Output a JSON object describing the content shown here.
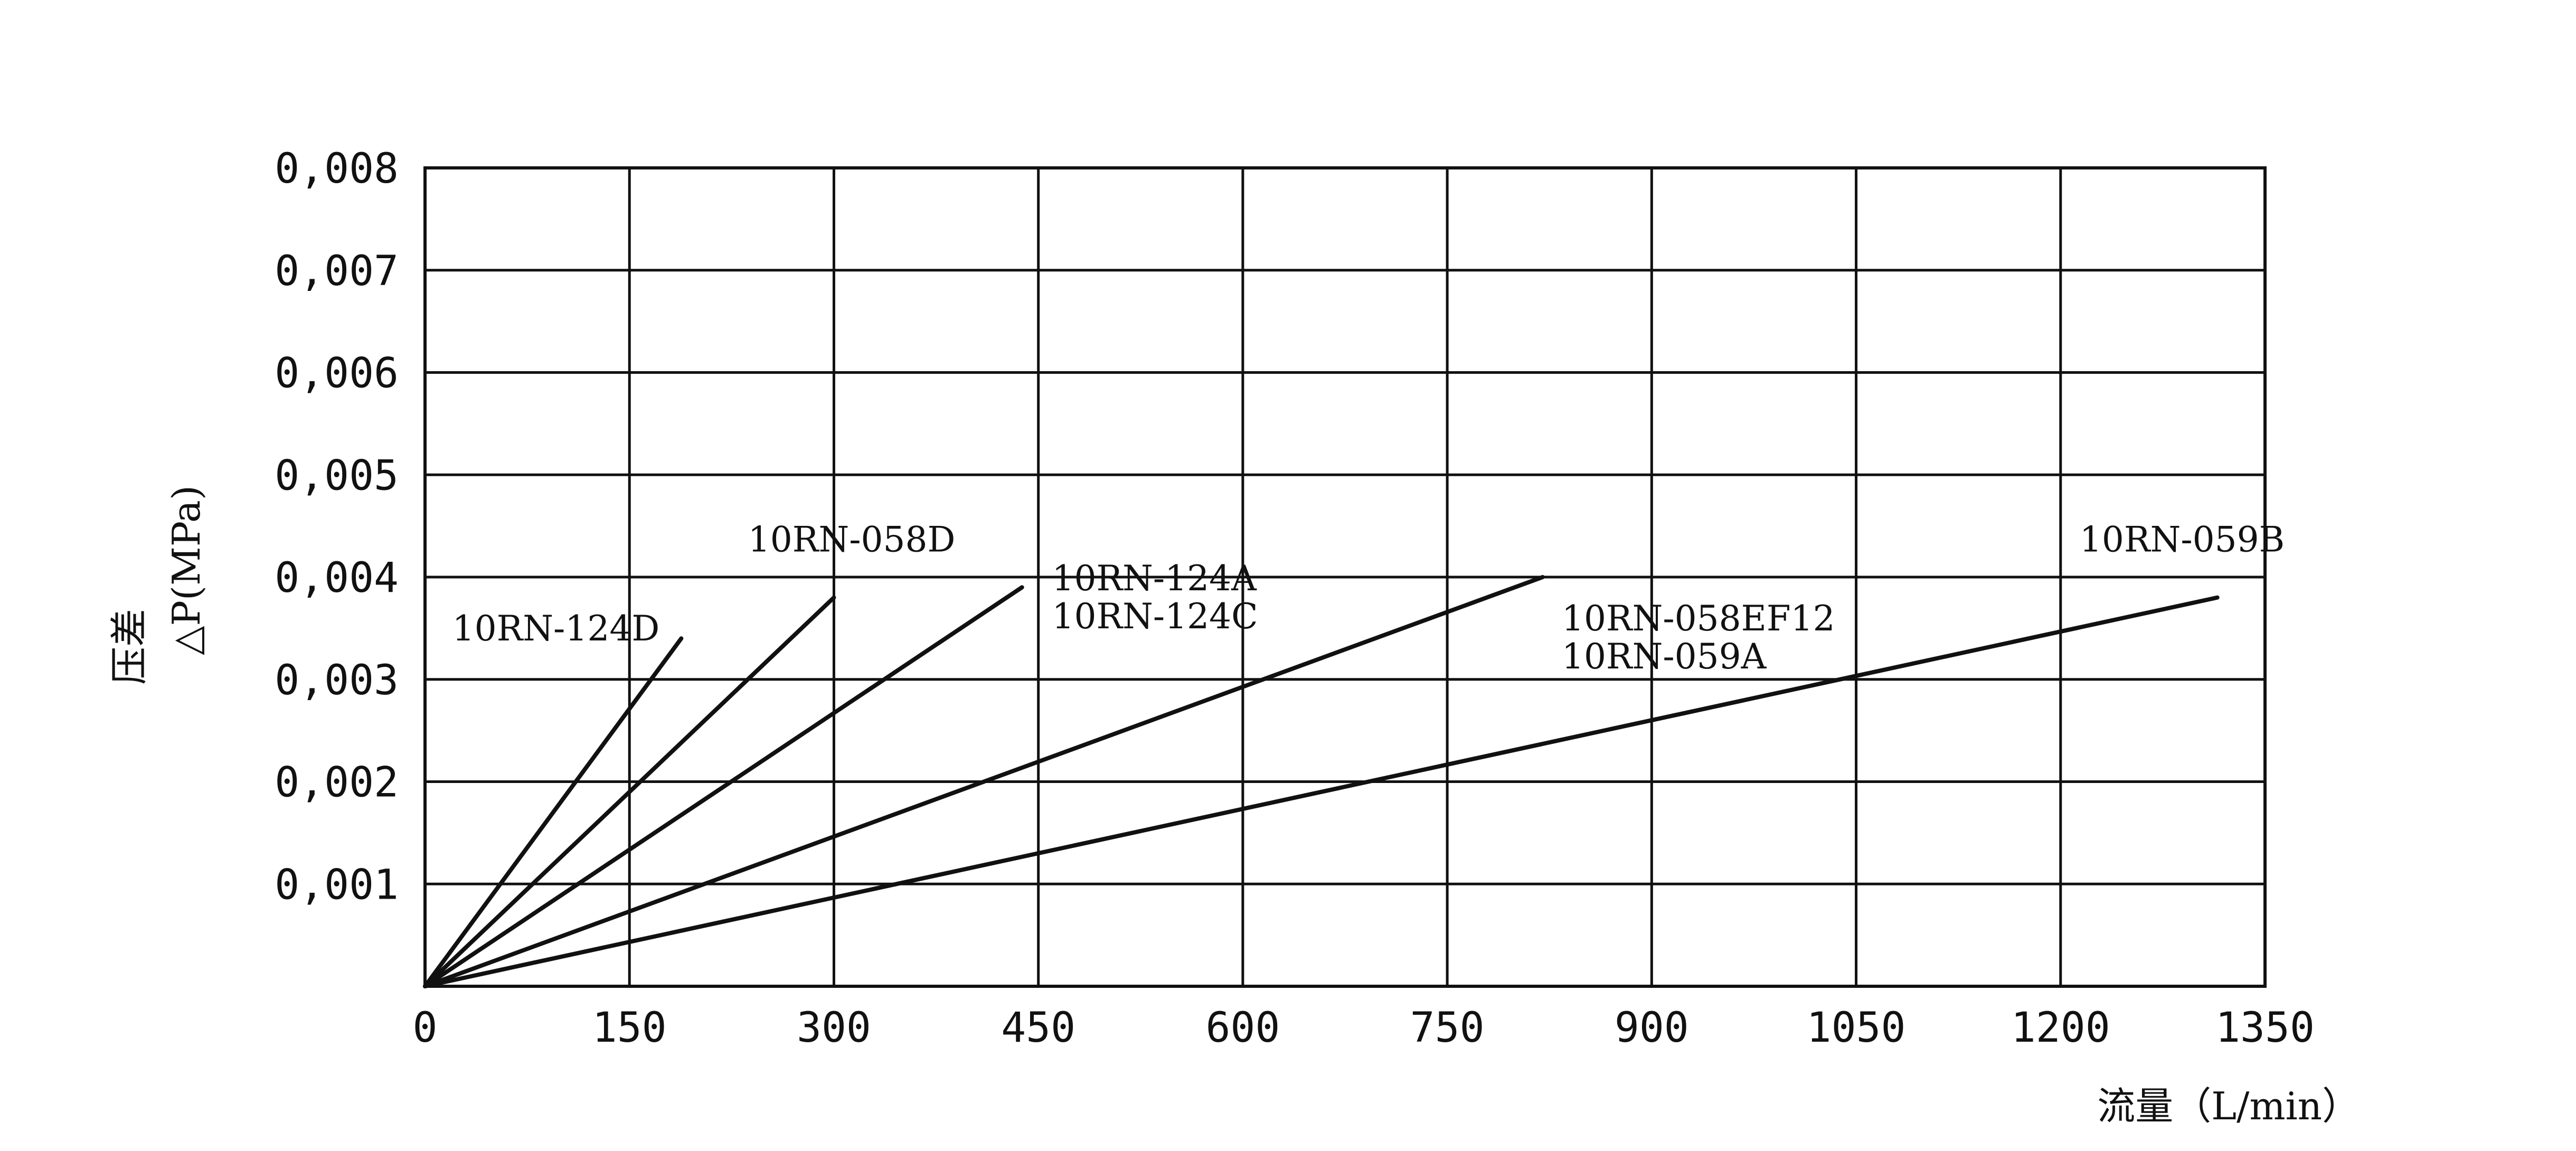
{
  "chart_data": {
    "type": "line",
    "xlabel": "流量（L/min）",
    "ylabel": "△P(MPa)",
    "ylabel_prefix": "压差",
    "xlim": [
      0,
      1350
    ],
    "ylim": [
      0,
      0.008
    ],
    "grid": true,
    "x_ticks": [
      "0",
      "150",
      "300",
      "450",
      "600",
      "750",
      "900",
      "1050",
      "1200",
      "1350"
    ],
    "y_ticks": [
      "0,001",
      "0,002",
      "0,003",
      "0,004",
      "0,005",
      "0,006",
      "0,007",
      "0,008"
    ],
    "series": [
      {
        "name": "10RN-124D",
        "x": [
          0,
          188
        ],
        "y": [
          0,
          0.0034
        ]
      },
      {
        "name": "10RN-058D",
        "x": [
          0,
          300
        ],
        "y": [
          0,
          0.0038
        ]
      },
      {
        "name": "10RN-124A / 10RN-124C",
        "x": [
          0,
          438
        ],
        "y": [
          0,
          0.0039
        ]
      },
      {
        "name": "10RN-058EF12 / 10RN-059A",
        "x": [
          0,
          820
        ],
        "y": [
          0,
          0.004
        ]
      },
      {
        "name": "10RN-059B",
        "x": [
          0,
          1315
        ],
        "y": [
          0,
          0.0038
        ]
      }
    ],
    "series_labels": [
      {
        "lines": [
          "10RN-124D"
        ],
        "x": 20,
        "y": 0.00338
      },
      {
        "lines": [
          "10RN-058D"
        ],
        "x": 237,
        "y": 0.00425
      },
      {
        "lines": [
          "10RN-124A",
          "10RN-124C"
        ],
        "x": 460,
        "y": 0.00387
      },
      {
        "lines": [
          "10RN-058EF12",
          "10RN-059A"
        ],
        "x": 834,
        "y": 0.00348
      },
      {
        "lines": [
          "10RN-059B"
        ],
        "x": 1214,
        "y": 0.00425
      }
    ]
  }
}
